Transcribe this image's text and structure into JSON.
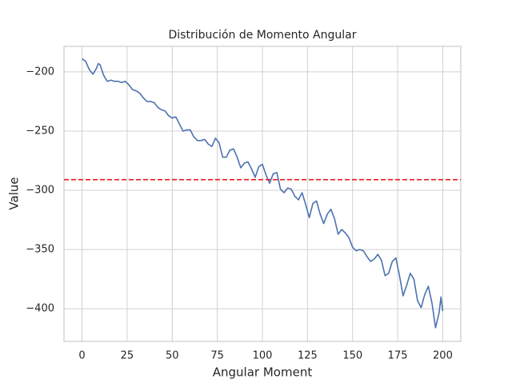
{
  "chart_data": {
    "type": "line",
    "title": "Distribución de Momento Angular",
    "xlabel": "Angular Moment",
    "ylabel": "Value",
    "x": [
      0,
      2,
      4,
      6,
      8,
      9,
      10,
      12,
      14,
      16,
      18,
      20,
      22,
      24,
      26,
      28,
      30,
      32,
      34,
      36,
      38,
      40,
      42,
      44,
      46,
      48,
      50,
      52,
      54,
      56,
      58,
      60,
      62,
      64,
      66,
      68,
      70,
      72,
      74,
      76,
      78,
      80,
      82,
      84,
      86,
      88,
      90,
      92,
      94,
      96,
      98,
      100,
      102,
      104,
      106,
      108,
      110,
      112,
      114,
      116,
      118,
      120,
      122,
      124,
      126,
      128,
      130,
      132,
      134,
      136,
      138,
      140,
      142,
      144,
      146,
      148,
      150,
      152,
      154,
      156,
      158,
      160,
      162,
      164,
      166,
      168,
      170,
      172,
      174,
      176,
      178,
      180,
      182,
      184,
      186,
      188,
      190,
      192,
      194,
      196,
      198,
      199,
      200
    ],
    "series": [
      {
        "color": "#4c72b0",
        "values": [
          -189,
          -191,
          -198,
          -202,
          -197,
          -193,
          -194,
          -203,
          -208,
          -207,
          -208,
          -208,
          -209,
          -208,
          -211,
          -215,
          -216,
          -218,
          -222,
          -225,
          -225,
          -226,
          -230,
          -232,
          -233,
          -237,
          -239,
          -238,
          -244,
          -250,
          -249,
          -249,
          -255,
          -258,
          -258,
          -257,
          -261,
          -263,
          -256,
          -260,
          -272,
          -272,
          -266,
          -265,
          -272,
          -281,
          -277,
          -276,
          -282,
          -289,
          -280,
          -278,
          -287,
          -294,
          -286,
          -285,
          -299,
          -302,
          -298,
          -299,
          -305,
          -308,
          -302,
          -312,
          -323,
          -311,
          -309,
          -320,
          -328,
          -320,
          -316,
          -324,
          -337,
          -333,
          -336,
          -340,
          -348,
          -351,
          -350,
          -351,
          -356,
          -360,
          -358,
          -354,
          -359,
          -372,
          -370,
          -360,
          -357,
          -372,
          -389,
          -380,
          -370,
          -375,
          -393,
          -399,
          -388,
          -381,
          -395,
          -416,
          -403,
          -390,
          -402
        ]
      }
    ],
    "reference_line": {
      "value": -291,
      "color": "#e41a1c",
      "style": "dashed"
    },
    "xlim": [
      -10,
      210
    ],
    "xticks": [
      0,
      25,
      50,
      75,
      100,
      125,
      150,
      175,
      200
    ],
    "ylim": [
      -427.5,
      -178.5
    ],
    "yticks": [
      {
        "value": -400,
        "label": "−400"
      },
      {
        "value": -350,
        "label": "−350"
      },
      {
        "value": -300,
        "label": "−300"
      },
      {
        "value": -250,
        "label": "−250"
      },
      {
        "value": -200,
        "label": "−200"
      }
    ],
    "grid": true
  }
}
